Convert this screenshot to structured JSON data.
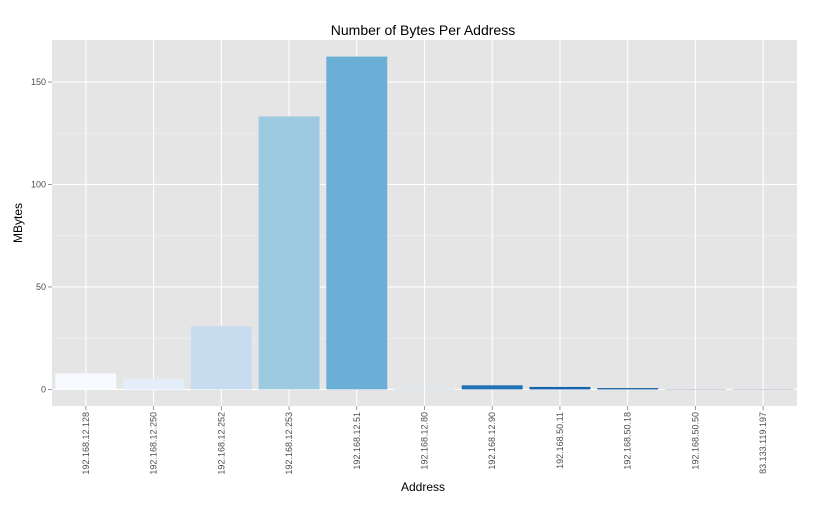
{
  "chart_data": {
    "type": "bar",
    "title": "Number of Bytes Per Address",
    "xlabel": "Address",
    "ylabel": "MBytes",
    "categories": [
      "192.168.12.128",
      "192.168.12.250",
      "192.168.12.252",
      "192.168.12.253",
      "192.168.12.51",
      "192.168.12.80",
      "192.168.12.90",
      "192.168.50.11",
      "192.168.50.18",
      "192.168.50.50",
      "83.133.119.197"
    ],
    "values": [
      7.8,
      5.0,
      30.8,
      133.2,
      162.4,
      0.1,
      2.0,
      1.2,
      0.6,
      0.1,
      0.1
    ],
    "colors": [
      "#f7fbff",
      "#e3eef9",
      "#c8dcf0",
      "#9ecae1",
      "#6baed6",
      "#4292c6",
      "#2171b5",
      "#1764ab",
      "#08519c",
      "#08306b",
      "#08306b"
    ],
    "yticks": [
      0,
      50,
      100,
      150
    ],
    "ylim": [
      -8.1,
      170.5
    ],
    "grid": true,
    "panel_background": "#e5e5e5",
    "legend": "none"
  }
}
